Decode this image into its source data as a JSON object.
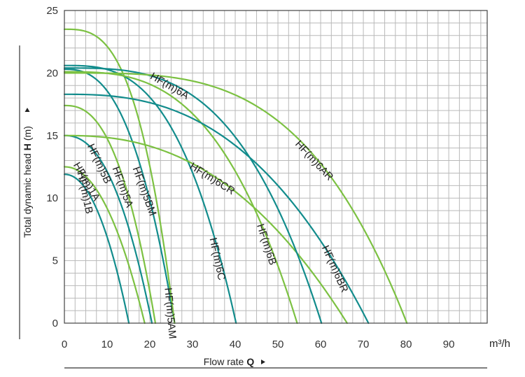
{
  "chart_data": {
    "type": "line",
    "title": "",
    "xlabel": "Flow rate",
    "xlabel_symbol": "Q",
    "x_unit": "m³/h",
    "ylabel": "Total dynamic head",
    "ylabel_symbol": "H",
    "y_unit": "(m)",
    "xlim": [
      0,
      99
    ],
    "ylim": [
      0,
      25
    ],
    "x_ticks": [
      "0",
      "10",
      "20",
      "30",
      "40",
      "50",
      "60",
      "70",
      "80",
      "90"
    ],
    "y_ticks": [
      "0",
      "5",
      "10",
      "15",
      "20",
      "25"
    ],
    "x_tick_values": [
      0,
      10,
      20,
      30,
      40,
      50,
      60,
      70,
      80,
      90
    ],
    "y_tick_values": [
      0,
      5,
      10,
      15,
      20,
      25
    ],
    "grid": true,
    "colors": {
      "teal": "#128c8c",
      "green": "#7cc142"
    },
    "series": [
      {
        "name": "HF(m)1B",
        "color": "teal",
        "shutoff_head": 11.9,
        "max_flow": 15.1,
        "exponent": 2.1,
        "label_flow": 5.5,
        "label_angle": 78
      },
      {
        "name": "HF(m)1A",
        "color": "green",
        "shutoff_head": 12.5,
        "max_flow": 18.8,
        "exponent": 2.1,
        "label_flow": 5.8,
        "label_angle": 60
      },
      {
        "name": "HF(m)5B",
        "color": "teal",
        "shutoff_head": 15.0,
        "max_flow": 20.5,
        "exponent": 2.3,
        "label_flow": 8.8,
        "label_angle": 65
      },
      {
        "name": "HF(m)5A",
        "color": "green",
        "shutoff_head": 17.4,
        "max_flow": 21.3,
        "exponent": 2.5,
        "label_flow": 14.3,
        "label_angle": 70
      },
      {
        "name": "HF(m)5BM",
        "color": "teal",
        "shutoff_head": 20.3,
        "max_flow": 25.8,
        "exponent": 2.6,
        "label_flow": 19.4,
        "label_angle": 70
      },
      {
        "name": "HF(m)5AM",
        "color": "green",
        "shutoff_head": 23.5,
        "max_flow": 25.8,
        "exponent": 3.0,
        "label_flow": 25.5,
        "label_angle": 85
      },
      {
        "name": "HF(m)6C",
        "color": "teal",
        "shutoff_head": 20.6,
        "max_flow": 40.2,
        "exponent": 3.0,
        "label_flow": 36.5,
        "label_angle": 78
      },
      {
        "name": "HF(m)6B",
        "color": "green",
        "shutoff_head": 20.1,
        "max_flow": 54.5,
        "exponent": 3.0,
        "label_flow": 48.0,
        "label_angle": 72
      },
      {
        "name": "HF(m)6CR",
        "color": "green",
        "shutoff_head": 15.0,
        "max_flow": 66.2,
        "exponent": 2.4,
        "label_flow": 35.0,
        "label_angle": 32
      },
      {
        "name": "HF(m)6BR",
        "color": "teal",
        "shutoff_head": 18.3,
        "max_flow": 71.2,
        "exponent": 2.6,
        "label_flow": 64.0,
        "label_angle": 66
      },
      {
        "name": "HF(m)6A",
        "color": "teal",
        "shutoff_head": 20.4,
        "max_flow": 60.2,
        "exponent": 3.2,
        "label_flow": 25.0,
        "label_angle": 30
      },
      {
        "name": "HF(m)6AR",
        "color": "green",
        "shutoff_head": 20.0,
        "max_flow": 80.2,
        "exponent": 3.5,
        "label_flow": 59.0,
        "label_angle": 47
      }
    ]
  }
}
